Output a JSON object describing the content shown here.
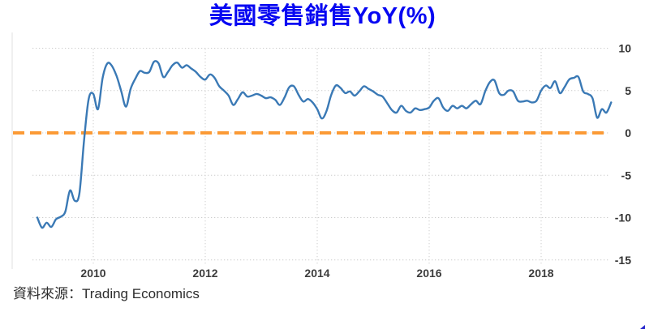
{
  "page": {
    "title_color": "#0707f2"
  },
  "chart_data": {
    "type": "line",
    "title": "美國零售銷售YoY(%)",
    "source": "資料來源：Trading Economics",
    "x_tick_labels": [
      "2010",
      "2012",
      "2014",
      "2016",
      "2018"
    ],
    "y_tick_labels": [
      "10",
      "5",
      "0",
      "-5",
      "-10",
      "-15"
    ],
    "ylim": [
      -15,
      11.5
    ],
    "grid": true,
    "legend": "none",
    "zero_line": {
      "value": 0,
      "color": "#FB9A36",
      "style": "dashed"
    },
    "axis_label_color": "#333333",
    "gridline_color": "#cccccc",
    "frequency": "monthly",
    "x_start": "2009-01",
    "x_end": "2019-04",
    "series": [
      {
        "name": "美國零售銷售YoY(%)",
        "color": "#3A79B5",
        "values": [
          -10.0,
          -11.2,
          -10.6,
          -11.1,
          -10.2,
          -9.9,
          -9.3,
          -6.8,
          -8.0,
          -7.2,
          -1.0,
          4.0,
          4.6,
          2.8,
          6.5,
          8.2,
          7.9,
          6.7,
          4.9,
          3.1,
          5.2,
          6.4,
          7.3,
          7.1,
          7.2,
          8.4,
          8.2,
          6.6,
          7.2,
          8.0,
          8.3,
          7.7,
          8.0,
          7.6,
          7.2,
          6.6,
          6.3,
          6.9,
          6.5,
          5.5,
          5.0,
          4.4,
          3.3,
          4.0,
          4.8,
          4.3,
          4.4,
          4.6,
          4.4,
          4.1,
          4.2,
          3.9,
          3.3,
          4.2,
          5.4,
          5.5,
          4.5,
          3.7,
          4.0,
          3.6,
          2.8,
          1.7,
          2.6,
          4.5,
          5.6,
          5.3,
          4.7,
          4.9,
          4.4,
          4.9,
          5.5,
          5.2,
          4.9,
          4.5,
          4.3,
          3.5,
          2.7,
          2.4,
          3.2,
          2.6,
          2.4,
          2.9,
          2.7,
          2.8,
          3.0,
          3.8,
          4.1,
          3.0,
          2.6,
          3.2,
          2.9,
          3.2,
          2.9,
          3.4,
          3.8,
          3.4,
          4.9,
          6.0,
          6.2,
          4.7,
          4.5,
          5.0,
          4.9,
          3.8,
          3.7,
          3.8,
          3.6,
          3.8,
          5.0,
          5.6,
          5.3,
          6.1,
          4.7,
          5.4,
          6.3,
          6.5,
          6.6,
          4.9,
          4.6,
          4.1,
          1.8,
          2.8,
          2.4,
          3.6
        ]
      }
    ]
  }
}
